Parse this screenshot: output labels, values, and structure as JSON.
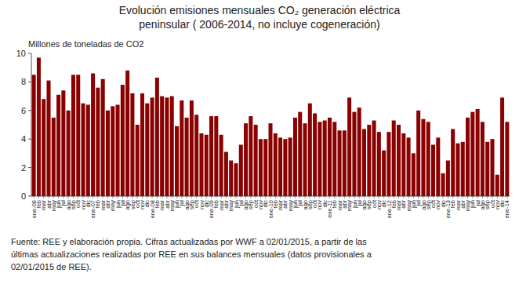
{
  "chart_data": {
    "type": "bar",
    "title": "Evolución emisiones mensuales CO₂ generación eléctrica",
    "subtitle": "peninsular ( 2006-2014, no incluye cogeneración)",
    "y_label": "Millones de toneladas de CO2",
    "annotations": [
      "Fuente: REE y elaboración propia. Cifras actualizadas por WWF a 02/01/2015, a partir de las",
      "últimas actualizaciones realizadas por REE en sus balances mensuales (datos provisionales a",
      "02/01/2015 de REE)."
    ],
    "categories": [
      "ene-06",
      "feb",
      "mar",
      "abr",
      "may",
      "jun",
      "jul",
      "ago",
      "sep",
      "oct",
      "nov",
      "dic",
      "ene-07",
      "feb",
      "mar",
      "abr",
      "may",
      "jun",
      "jul",
      "ago",
      "sep",
      "oct",
      "nov",
      "dic",
      "ene-08",
      "feb",
      "mar",
      "abr",
      "may",
      "jun",
      "jul",
      "ago",
      "sep",
      "oct",
      "nov",
      "dic",
      "ene-09",
      "feb",
      "mar",
      "abr",
      "may",
      "jun",
      "jul",
      "ago",
      "sep",
      "oct",
      "nov",
      "dic",
      "ene-10",
      "feb",
      "mar",
      "abr",
      "may",
      "jun",
      "jul",
      "ago",
      "sep",
      "oct",
      "nov",
      "dic",
      "ene-11",
      "feb",
      "mar",
      "abr",
      "may",
      "jun",
      "jul",
      "ago",
      "sep",
      "oct",
      "nov",
      "dic",
      "ene-12",
      "feb",
      "mar",
      "abr",
      "may",
      "jun",
      "jul",
      "ago",
      "sep",
      "oct",
      "nov",
      "dic",
      "ene-13",
      "feb",
      "mar",
      "abr",
      "may",
      "jun",
      "jul",
      "ago",
      "sep",
      "oct",
      "nov",
      "dic",
      "ene-14"
    ],
    "values": [
      8.5,
      9.7,
      6.8,
      8.1,
      5.5,
      7.1,
      7.4,
      6.0,
      8.5,
      8.5,
      6.5,
      6.4,
      8.6,
      7.6,
      8.2,
      6.0,
      6.3,
      6.4,
      7.8,
      8.8,
      7.2,
      5.0,
      7.2,
      6.5,
      6.9,
      8.3,
      7.0,
      6.9,
      7.0,
      4.9,
      6.7,
      5.5,
      6.7,
      5.7,
      4.4,
      4.3,
      5.6,
      5.6,
      4.3,
      3.1,
      2.5,
      2.3,
      3.6,
      5.1,
      5.6,
      5.0,
      4.0,
      4.0,
      5.1,
      4.4,
      4.1,
      4.0,
      4.1,
      5.5,
      5.9,
      5.1,
      6.5,
      5.8,
      5.2,
      5.3,
      5.5,
      5.2,
      4.6,
      4.6,
      6.9,
      5.9,
      6.2,
      4.7,
      5.0,
      5.3,
      4.5,
      3.2,
      4.5,
      5.3,
      5.0,
      4.4,
      4.1,
      3.0,
      6.0,
      5.4,
      5.2,
      3.6,
      4.1,
      1.6,
      2.5,
      4.7,
      3.7,
      3.8,
      5.5,
      5.9,
      6.1,
      5.2,
      3.8,
      4.0,
      1.5,
      6.9,
      5.2
    ],
    "color": "#8b0000",
    "ylim": [
      0,
      10
    ],
    "yticks": [
      0,
      2,
      4,
      6,
      8,
      10
    ],
    "grid": false
  }
}
